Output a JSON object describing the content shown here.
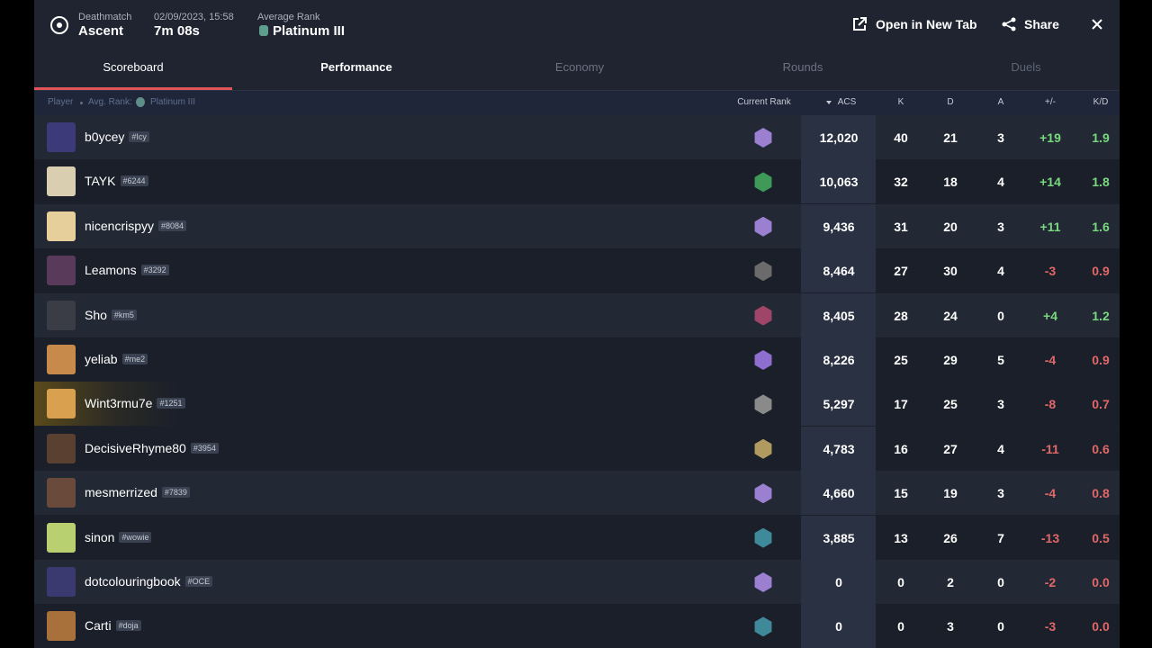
{
  "header": {
    "mode": "Deathmatch",
    "map": "Ascent",
    "date": "02/09/2023, 15:58",
    "duration": "7m 08s",
    "avg_rank_label": "Average Rank",
    "avg_rank": "Platinum III"
  },
  "actions": {
    "open": "Open in New Tab",
    "share": "Share"
  },
  "tabs": [
    "Scoreboard",
    "Performance",
    "Economy",
    "Rounds",
    "Duels"
  ],
  "table": {
    "columns": {
      "player": "Player",
      "avg_rank_label": "Avg. Rank:",
      "avg_rank": "Platinum III",
      "current_rank": "Current Rank",
      "acs": "ACS",
      "k": "K",
      "d": "D",
      "a": "A",
      "diff": "+/-",
      "kd": "K/D"
    },
    "rows": [
      {
        "name": "b0ycey",
        "tag": "#Icy",
        "acs": "12,020",
        "k": "40",
        "d": "21",
        "a": "3",
        "diff": "+19",
        "kd": "1.9"
      },
      {
        "name": "TAYK",
        "tag": "#6244",
        "acs": "10,063",
        "k": "32",
        "d": "18",
        "a": "4",
        "diff": "+14",
        "kd": "1.8"
      },
      {
        "name": "nicencrispyy",
        "tag": "#8084",
        "acs": "9,436",
        "k": "31",
        "d": "20",
        "a": "3",
        "diff": "+11",
        "kd": "1.6"
      },
      {
        "name": "Leamons",
        "tag": "#3292",
        "acs": "8,464",
        "k": "27",
        "d": "30",
        "a": "4",
        "diff": "-3",
        "kd": "0.9"
      },
      {
        "name": "Sho",
        "tag": "#km5",
        "acs": "8,405",
        "k": "28",
        "d": "24",
        "a": "0",
        "diff": "+4",
        "kd": "1.2"
      },
      {
        "name": "yeliab",
        "tag": "#me2",
        "acs": "8,226",
        "k": "25",
        "d": "29",
        "a": "5",
        "diff": "-4",
        "kd": "0.9"
      },
      {
        "name": "Wint3rmu7e",
        "tag": "#1251",
        "acs": "5,297",
        "k": "17",
        "d": "25",
        "a": "3",
        "diff": "-8",
        "kd": "0.7"
      },
      {
        "name": "DecisiveRhyme80",
        "tag": "#3954",
        "acs": "4,783",
        "k": "16",
        "d": "27",
        "a": "4",
        "diff": "-11",
        "kd": "0.6"
      },
      {
        "name": "mesmerrized",
        "tag": "#7839",
        "acs": "4,660",
        "k": "15",
        "d": "19",
        "a": "3",
        "diff": "-4",
        "kd": "0.8"
      },
      {
        "name": "sinon",
        "tag": "#wowie",
        "acs": "3,885",
        "k": "13",
        "d": "26",
        "a": "7",
        "diff": "-13",
        "kd": "0.5"
      },
      {
        "name": "dotcolouringbook",
        "tag": "#OCE",
        "acs": "0",
        "k": "0",
        "d": "2",
        "a": "0",
        "diff": "-2",
        "kd": "0.0"
      },
      {
        "name": "Carti",
        "tag": "#doja",
        "acs": "0",
        "k": "0",
        "d": "3",
        "a": "0",
        "diff": "-3",
        "kd": "0.0"
      }
    ]
  }
}
